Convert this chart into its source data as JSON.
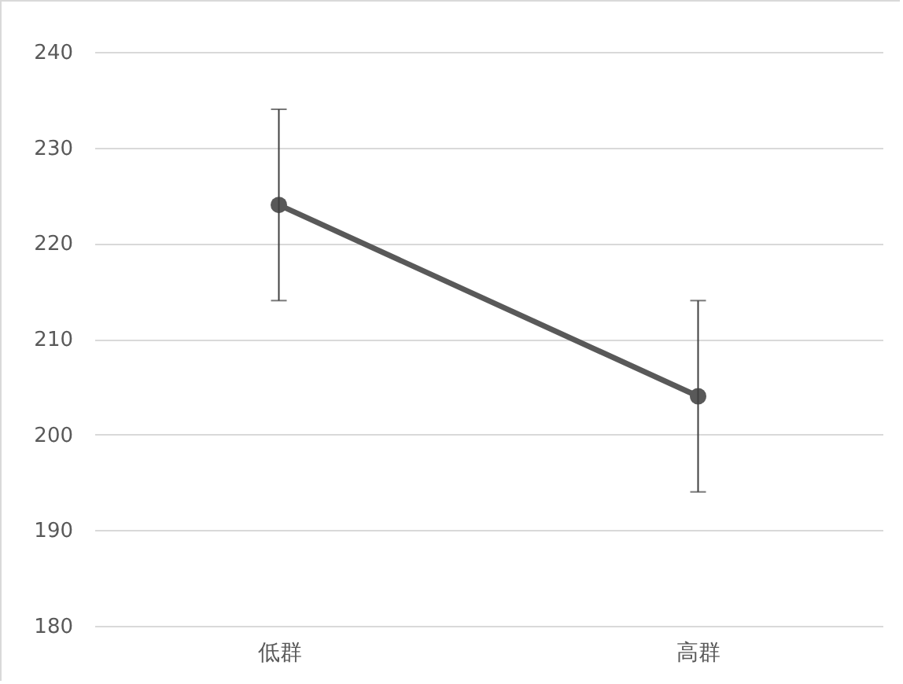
{
  "chart_data": {
    "type": "line",
    "categories": [
      "低群",
      "高群"
    ],
    "series": [
      {
        "color": "#595959",
        "values": [
          224,
          204
        ],
        "errors": [
          10,
          10
        ]
      }
    ],
    "ylim": [
      180,
      240
    ],
    "yticks": [
      180,
      190,
      200,
      210,
      220,
      230,
      240
    ],
    "grid": "y",
    "marker": "circle",
    "line_style": "solid"
  }
}
